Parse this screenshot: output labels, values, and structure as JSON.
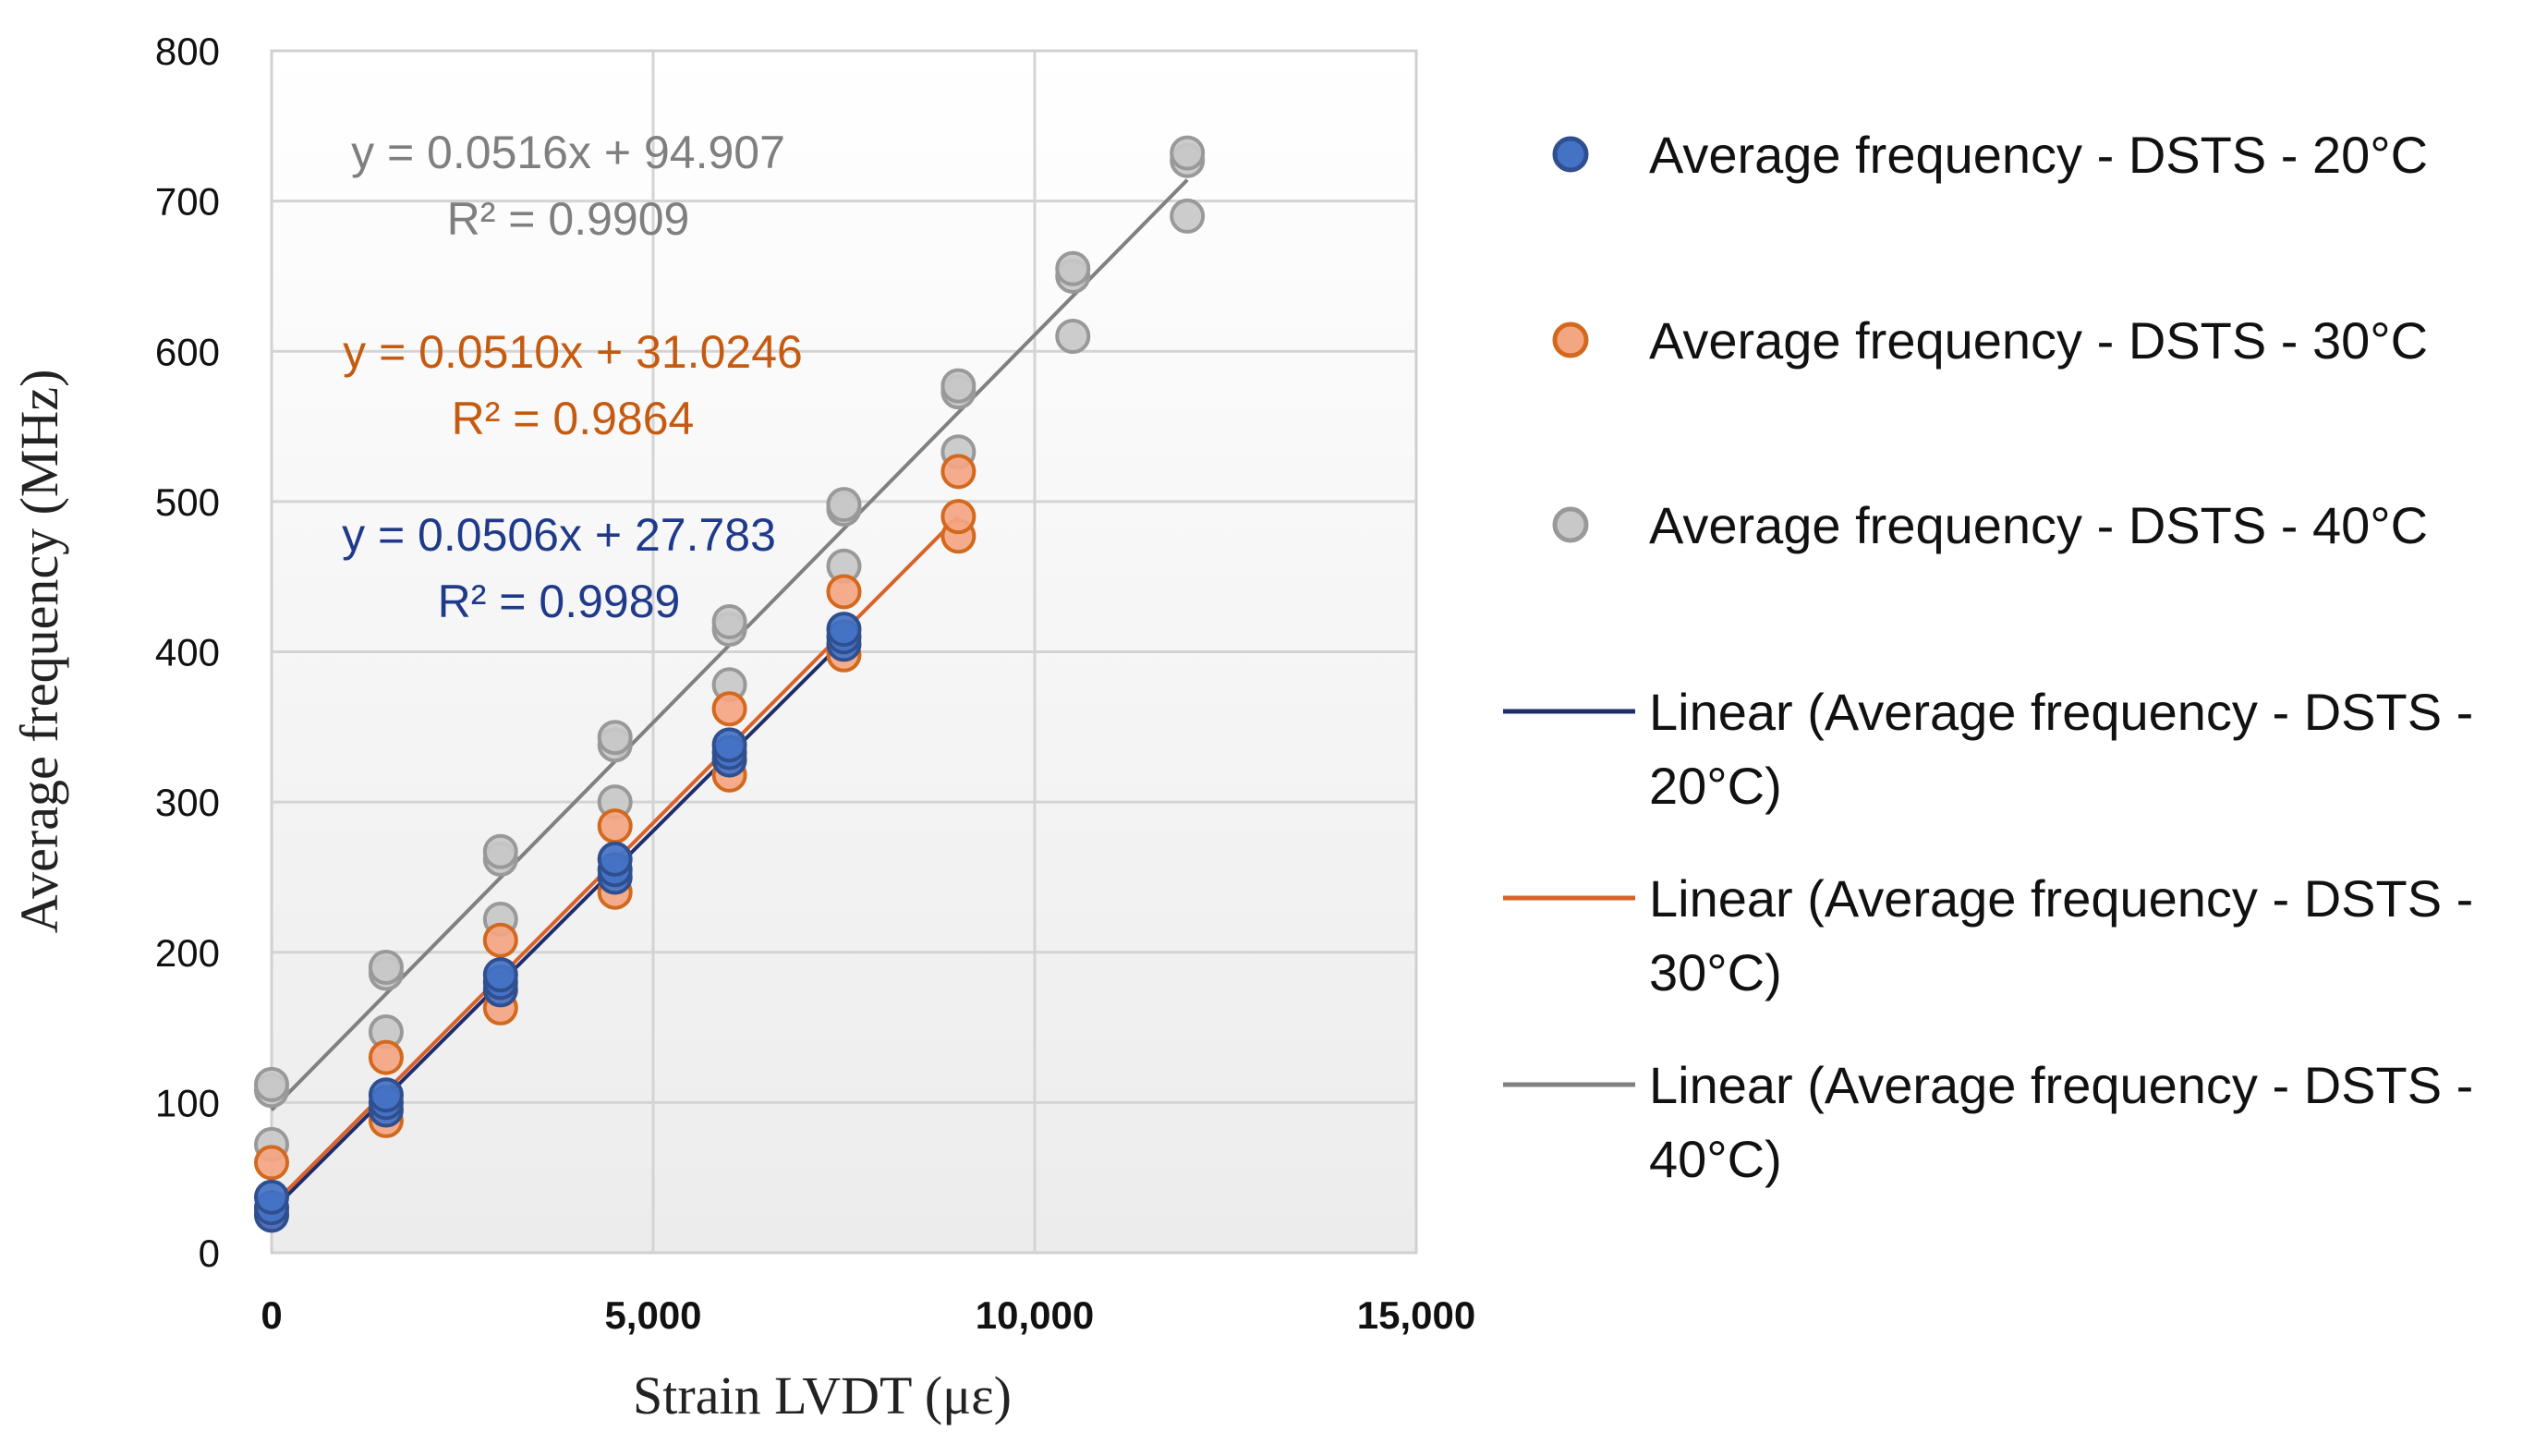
{
  "chart_data": {
    "type": "scatter",
    "xlabel": "Strain LVDT (με)",
    "ylabel": "Average frequency (MHz)",
    "xlim": [
      0,
      15000
    ],
    "ylim": [
      0,
      800
    ],
    "x_ticks": [
      0,
      5000,
      10000,
      15000
    ],
    "x_tick_labels": [
      "0",
      "5,000",
      "10,000",
      "15,000"
    ],
    "y_ticks": [
      0,
      100,
      200,
      300,
      400,
      500,
      600,
      700,
      800
    ],
    "y_tick_labels": [
      "0",
      "100",
      "200",
      "300",
      "400",
      "500",
      "600",
      "700",
      "800"
    ],
    "grid": true,
    "legend_position": "right",
    "series": [
      {
        "name": "Average frequency - DSTS - 20°C",
        "color": "#4472c4",
        "edge_color": "#2f4f8f",
        "points": [
          [
            0,
            25
          ],
          [
            0,
            30
          ],
          [
            0,
            37
          ],
          [
            1500,
            95
          ],
          [
            1500,
            100
          ],
          [
            1500,
            105
          ],
          [
            3000,
            175
          ],
          [
            3000,
            180
          ],
          [
            3000,
            185
          ],
          [
            4500,
            250
          ],
          [
            4500,
            255
          ],
          [
            4500,
            262
          ],
          [
            6000,
            328
          ],
          [
            6000,
            333
          ],
          [
            6000,
            338
          ],
          [
            7500,
            405
          ],
          [
            7500,
            410
          ],
          [
            7500,
            415
          ]
        ]
      },
      {
        "name": "Average frequency - DSTS - 30°C",
        "color": "#f4a582",
        "edge_color": "#d2691e",
        "points": [
          [
            0,
            27
          ],
          [
            0,
            60
          ],
          [
            1500,
            88
          ],
          [
            1500,
            130
          ],
          [
            3000,
            163
          ],
          [
            3000,
            208
          ],
          [
            4500,
            240
          ],
          [
            4500,
            284
          ],
          [
            6000,
            318
          ],
          [
            6000,
            362
          ],
          [
            7500,
            398
          ],
          [
            7500,
            440
          ],
          [
            9000,
            477
          ],
          [
            9000,
            490
          ],
          [
            9000,
            520
          ]
        ]
      },
      {
        "name": "Average frequency - DSTS - 40°C",
        "color": "#c8c8c8",
        "edge_color": "#999999",
        "points": [
          [
            0,
            72
          ],
          [
            0,
            108
          ],
          [
            0,
            112
          ],
          [
            1500,
            147
          ],
          [
            1500,
            186
          ],
          [
            1500,
            190
          ],
          [
            3000,
            222
          ],
          [
            3000,
            262
          ],
          [
            3000,
            267
          ],
          [
            4500,
            300
          ],
          [
            4500,
            338
          ],
          [
            4500,
            343
          ],
          [
            6000,
            378
          ],
          [
            6000,
            415
          ],
          [
            6000,
            420
          ],
          [
            7500,
            457
          ],
          [
            7500,
            495
          ],
          [
            7500,
            498
          ],
          [
            9000,
            533
          ],
          [
            9000,
            573
          ],
          [
            9000,
            577
          ],
          [
            10500,
            610
          ],
          [
            10500,
            650
          ],
          [
            10500,
            655
          ],
          [
            12000,
            690
          ],
          [
            12000,
            727
          ],
          [
            12000,
            732
          ]
        ]
      }
    ],
    "trendlines": [
      {
        "name": "Linear (Average frequency - DSTS - 20°C)",
        "legend_line1": "Linear (Average frequency - DSTS -",
        "legend_line2": "20°C)",
        "color": "#1f2d6b",
        "slope": 0.0506,
        "intercept": 27.783,
        "x_range": [
          0,
          7500
        ],
        "equation": "y = 0.0506x + 27.783",
        "r2": "R² = 0.9989",
        "label_color": "#1f3a8a"
      },
      {
        "name": "Linear (Average frequency - DSTS - 30°C)",
        "legend_line1": "Linear (Average frequency - DSTS -",
        "legend_line2": "30°C)",
        "color": "#d9622b",
        "slope": 0.051,
        "intercept": 31.0246,
        "x_range": [
          0,
          9000
        ],
        "equation": "y = 0.0510x + 31.0246",
        "r2": "R² = 0.9864",
        "label_color": "#c55a11"
      },
      {
        "name": "Linear (Average frequency - DSTS - 40°C)",
        "legend_line1": "Linear (Average frequency - DSTS -",
        "legend_line2": "40°C)",
        "color": "#808080",
        "slope": 0.0516,
        "intercept": 94.907,
        "x_range": [
          0,
          12000
        ],
        "equation": "y = 0.0516x + 94.907",
        "r2": "R² = 0.9909",
        "label_color": "#7f7f7f"
      }
    ]
  }
}
